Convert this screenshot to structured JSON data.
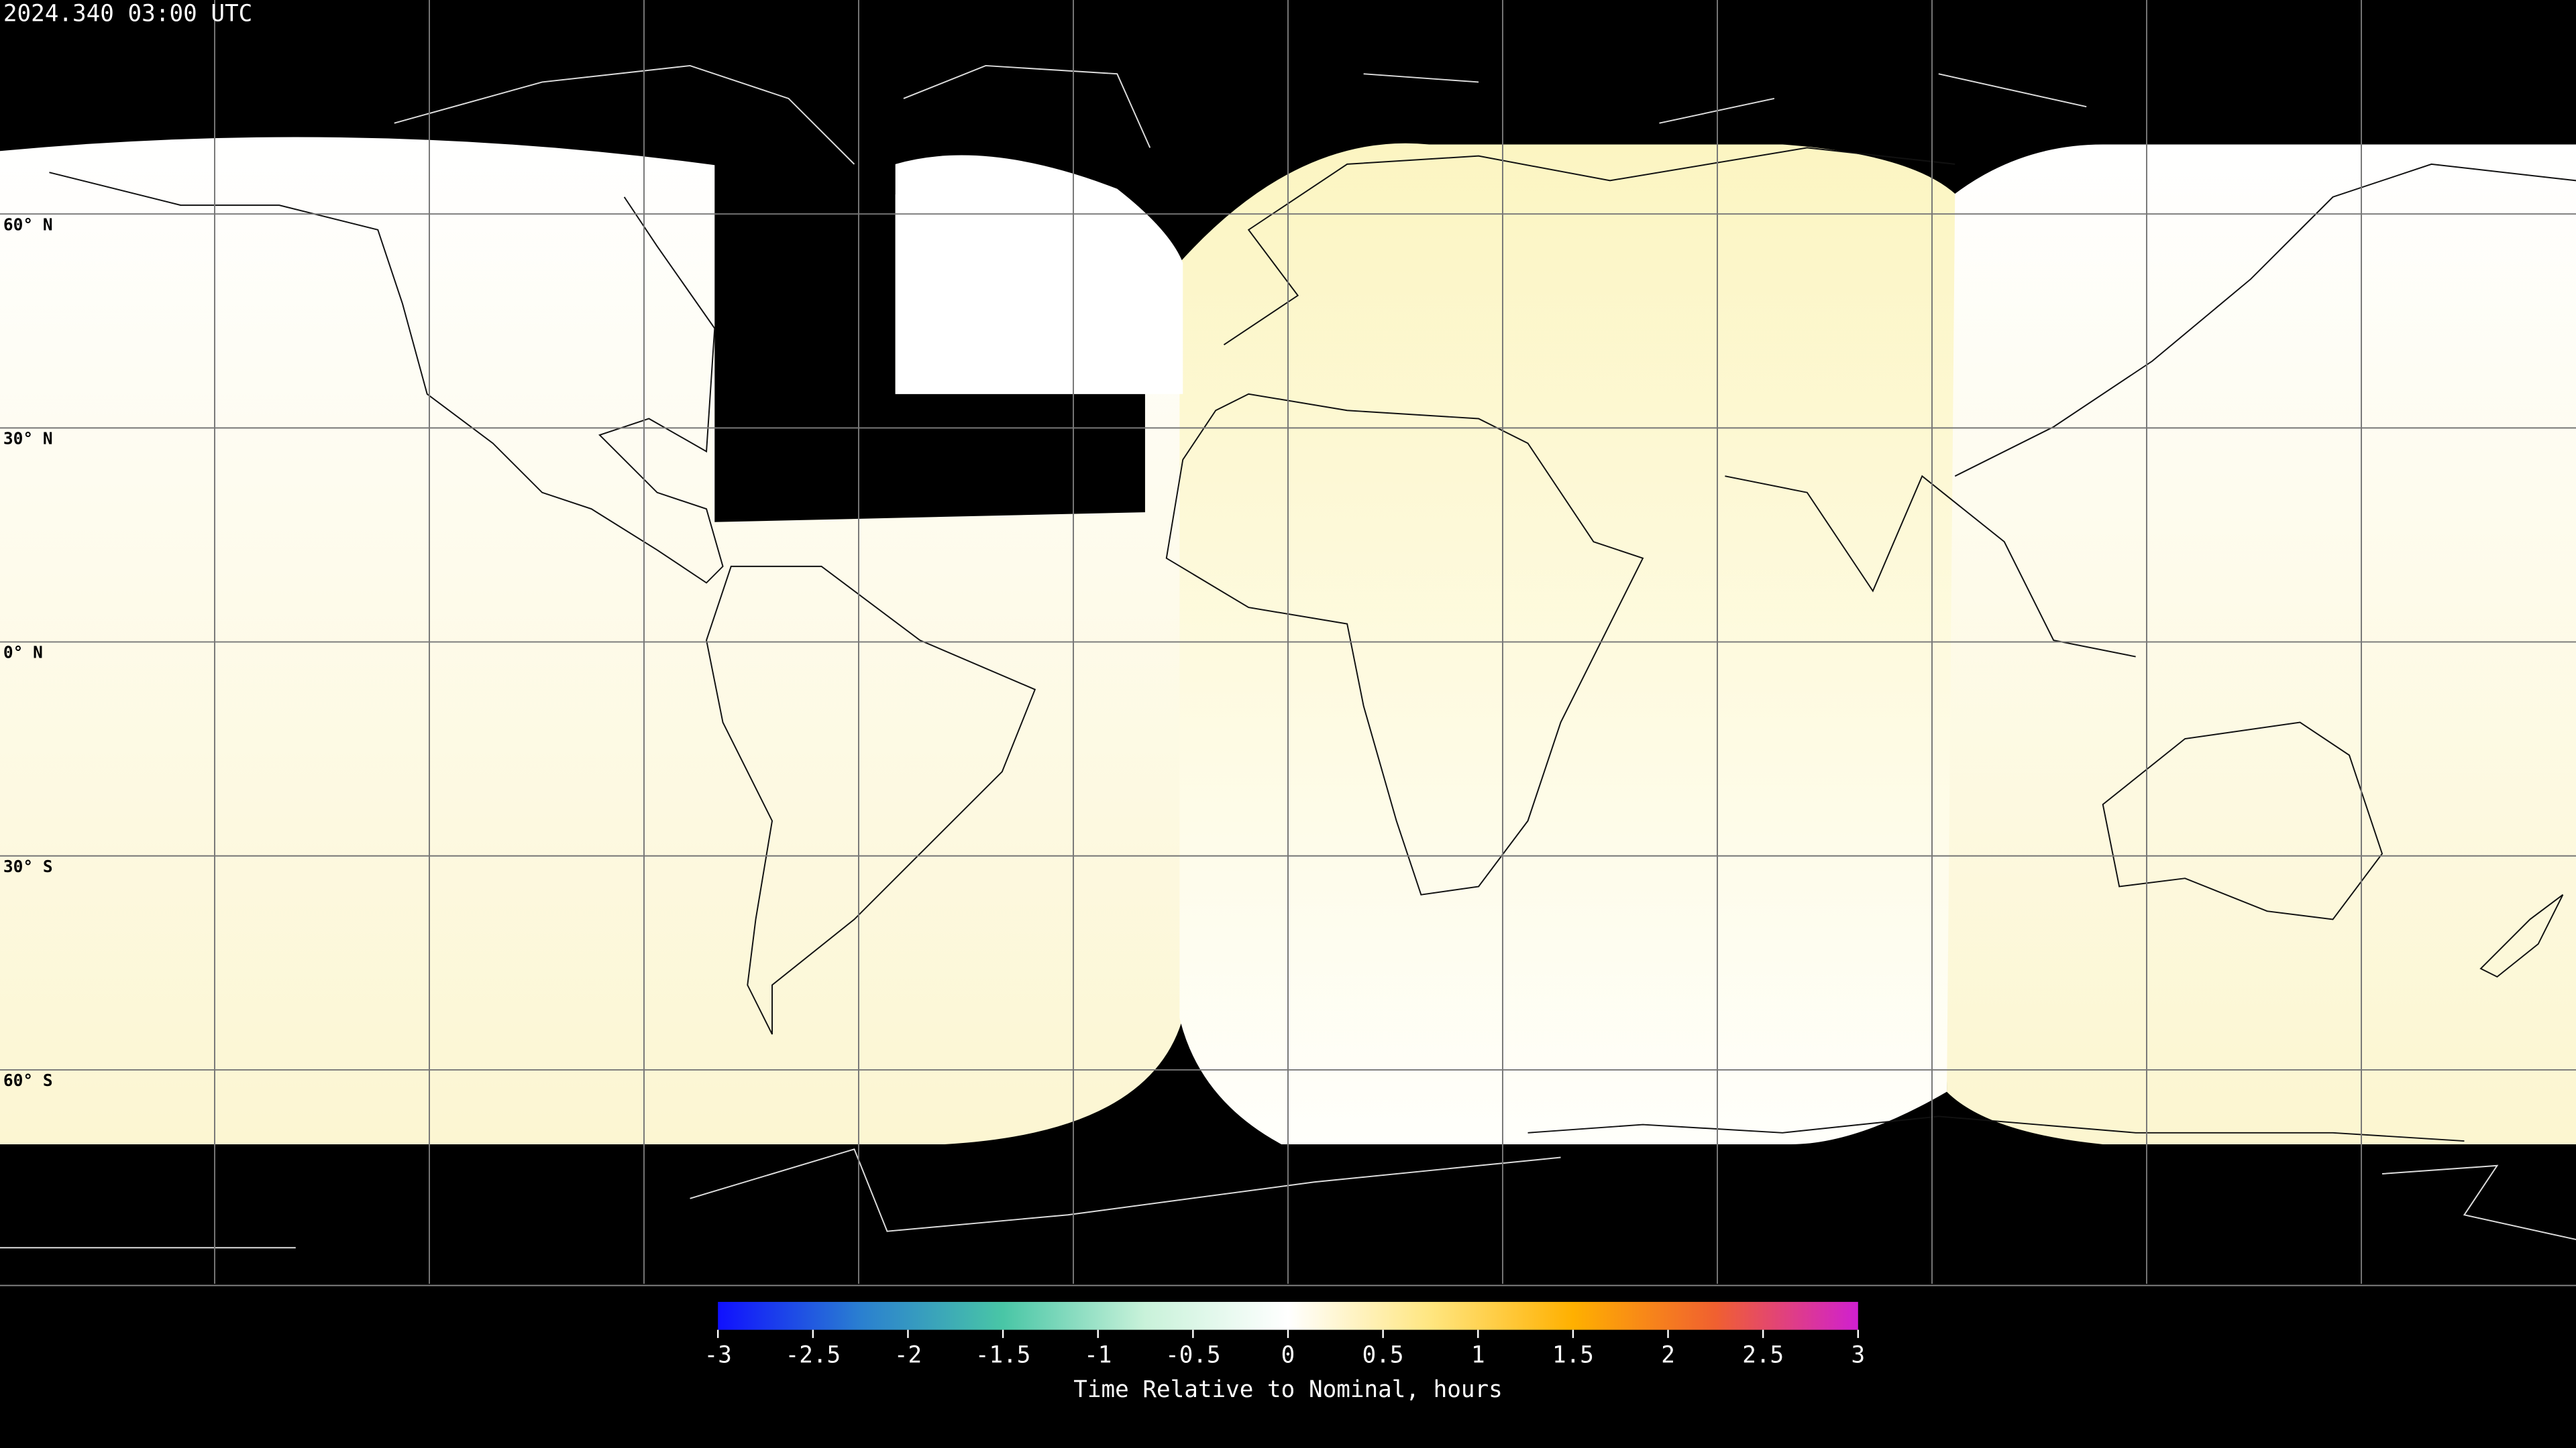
{
  "map": {
    "title": "2024.340 03:00 UTC",
    "xlim": [
      -180,
      180
    ],
    "ylim": [
      -90,
      90
    ],
    "lon_lines": [
      -150,
      -120,
      -90,
      -60,
      -30,
      0,
      30,
      60,
      90,
      120,
      150
    ],
    "lat_lines": [
      {
        "value": 60,
        "label": "60° N"
      },
      {
        "value": 30,
        "label": "30° N"
      },
      {
        "value": 0,
        "label": "0° N"
      },
      {
        "value": -30,
        "label": "30° S"
      },
      {
        "value": -60,
        "label": "60° S"
      }
    ],
    "colorbar": {
      "lim": [
        -3,
        3
      ],
      "ticks": [
        -3,
        -2.5,
        -2,
        -1.5,
        -1,
        -0.5,
        0,
        0.5,
        1,
        1.5,
        2,
        2.5,
        3
      ],
      "colors": [
        "#1010ff",
        "#2a7fd0",
        "#49c6a6",
        "#c9f2da",
        "#ffffff",
        "#ffe680",
        "#ffb000",
        "#f06030",
        "#d020d0"
      ],
      "label": "Time Relative to Nominal, hours"
    }
  }
}
